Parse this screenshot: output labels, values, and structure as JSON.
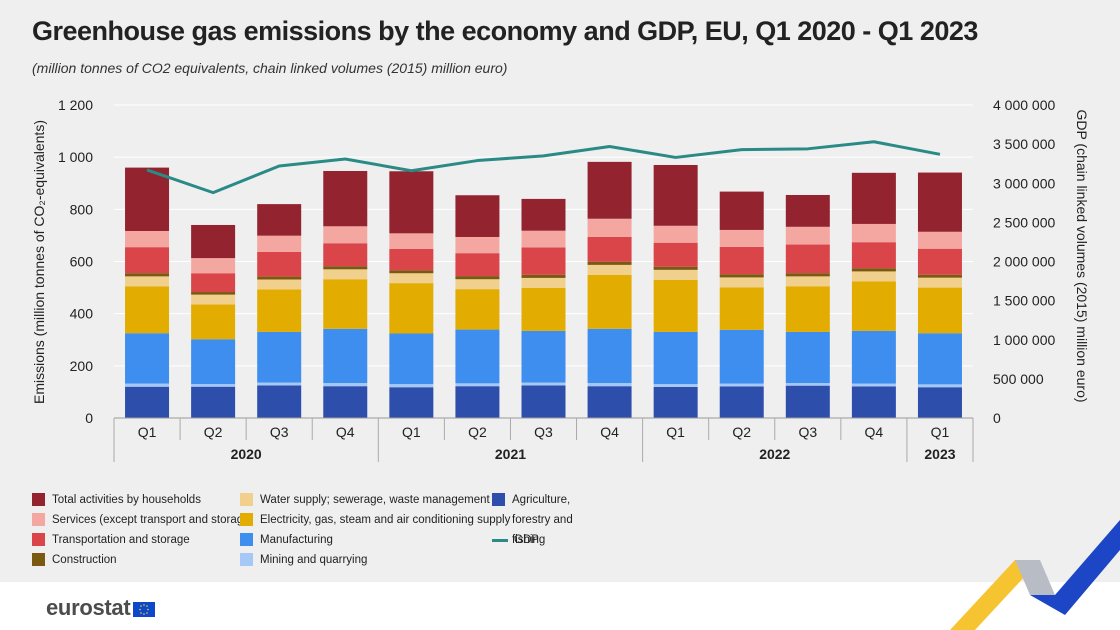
{
  "title": "Greenhouse gas emissions by the economy and GDP, EU, Q1 2020 - Q1 2023",
  "subtitle": "(million tonnes of CO2 equivalents, chain linked volumes (2015) million euro)",
  "logo_text": "eurostat",
  "colors": {
    "households": "#92232f",
    "services": "#f4a7a0",
    "transport": "#d94549",
    "construction": "#7a5a10",
    "water": "#f0d08c",
    "electricity": "#e2ac00",
    "manufacturing": "#3e8ef0",
    "mining": "#a6c8f6",
    "agriculture": "#2e4eac",
    "gdp": "#2a8a86"
  },
  "chart_data": {
    "type": "bar",
    "stacked": true,
    "categories": [
      "Q1",
      "Q2",
      "Q3",
      "Q4",
      "Q1",
      "Q2",
      "Q3",
      "Q4",
      "Q1",
      "Q2",
      "Q3",
      "Q4",
      "Q1"
    ],
    "year_groups": [
      {
        "label": "2020",
        "span": 4
      },
      {
        "label": "2021",
        "span": 4
      },
      {
        "label": "2022",
        "span": 4
      },
      {
        "label": "2023",
        "span": 1
      }
    ],
    "ylabel": "Emissions (million tonnes of CO₂-equivalents)",
    "ylabel_right": "GDP (chain linked volumes (2015) million euro)",
    "ylim": [
      0,
      1200
    ],
    "yticks": [
      0,
      200,
      400,
      600,
      800,
      1000,
      1200
    ],
    "ytick_labels": [
      "0",
      "200",
      "400",
      "600",
      "800",
      "1 000",
      "1 200"
    ],
    "ylim_right": [
      0,
      4000000
    ],
    "yticks_right": [
      0,
      500000,
      1000000,
      1500000,
      2000000,
      2500000,
      3000000,
      3500000,
      4000000
    ],
    "ytick_labels_right": [
      "0",
      "500 000",
      "1 000 000",
      "1 500 000",
      "2 000 000",
      "2 500 000",
      "3 000 000",
      "3 500 000",
      "4 000 000"
    ],
    "series": [
      {
        "key": "agriculture",
        "name": "Agriculture, forestry and fishing",
        "values": [
          120,
          120,
          125,
          122,
          118,
          122,
          125,
          122,
          119,
          121,
          124,
          121,
          118
        ]
      },
      {
        "key": "mining",
        "name": "Mining and quarrying",
        "values": [
          12,
          10,
          11,
          12,
          12,
          11,
          11,
          12,
          11,
          11,
          10,
          11,
          11
        ]
      },
      {
        "key": "manufacturing",
        "name": "Manufacturing",
        "values": [
          193,
          172,
          194,
          208,
          194,
          206,
          198,
          208,
          200,
          206,
          196,
          202,
          196
        ]
      },
      {
        "key": "electricity",
        "name": "Electricity, gas, steam and air conditioning supply",
        "values": [
          180,
          133,
          163,
          190,
          193,
          155,
          165,
          207,
          200,
          163,
          175,
          190,
          175
        ]
      },
      {
        "key": "water",
        "name": "Water supply; sewerage, waste management",
        "values": [
          38,
          38,
          38,
          38,
          38,
          38,
          38,
          38,
          38,
          38,
          38,
          38,
          38
        ]
      },
      {
        "key": "construction",
        "name": "Construction",
        "values": [
          12,
          10,
          11,
          12,
          11,
          12,
          12,
          12,
          12,
          12,
          12,
          12,
          11
        ]
      },
      {
        "key": "transport",
        "name": "Transportation and storage",
        "values": [
          100,
          72,
          95,
          88,
          82,
          88,
          105,
          95,
          92,
          105,
          110,
          100,
          100
        ]
      },
      {
        "key": "services",
        "name": "Services (except transport and storage)",
        "values": [
          62,
          58,
          62,
          65,
          60,
          62,
          64,
          70,
          65,
          65,
          68,
          70,
          65
        ]
      },
      {
        "key": "households",
        "name": "Total activities by households",
        "values": [
          243,
          127,
          121,
          212,
          238,
          160,
          122,
          218,
          233,
          147,
          122,
          196,
          227
        ]
      }
    ],
    "line_series": {
      "key": "gdp",
      "name": "GDP",
      "axis": "right",
      "values": [
        3170000,
        2880000,
        3220000,
        3310000,
        3160000,
        3290000,
        3350000,
        3470000,
        3330000,
        3430000,
        3440000,
        3530000,
        3370000
      ]
    },
    "legend_position": "bottom",
    "grid": true
  }
}
